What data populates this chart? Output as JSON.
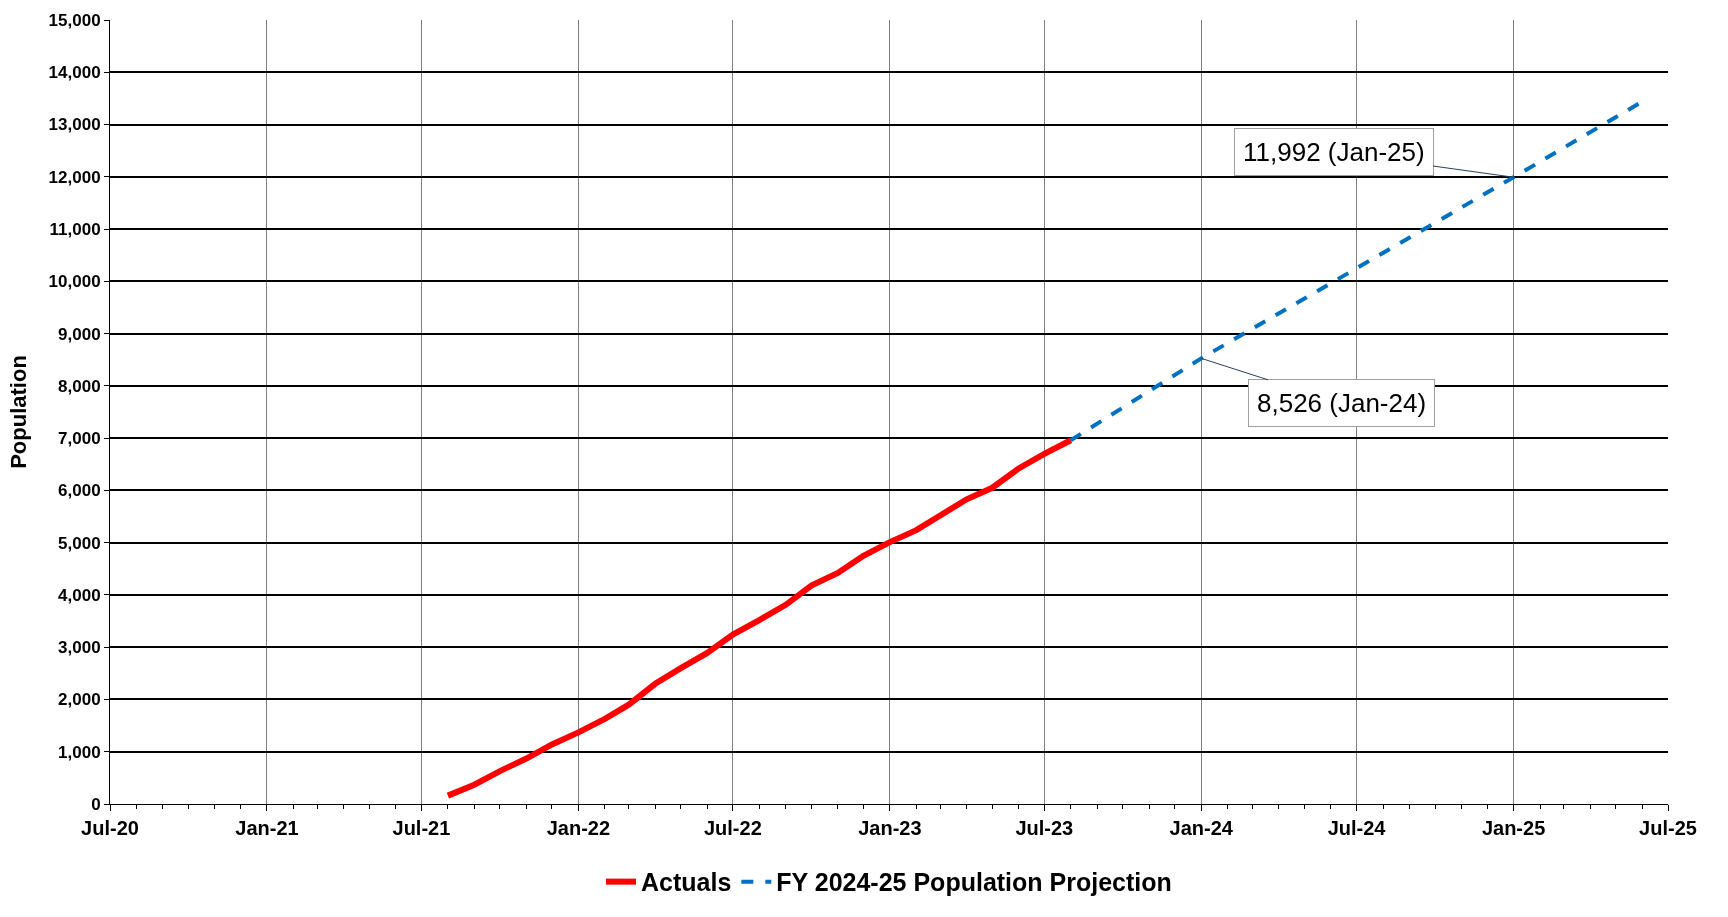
{
  "chart_data": {
    "type": "line",
    "ylabel": "Population",
    "xlim": [
      "2020-07-01",
      "2025-07-01"
    ],
    "xticks": [
      {
        "value": "2020-07-01",
        "label": "Jul-20"
      },
      {
        "value": "2021-01-01",
        "label": "Jan-21"
      },
      {
        "value": "2021-07-01",
        "label": "Jul-21"
      },
      {
        "value": "2022-01-01",
        "label": "Jan-22"
      },
      {
        "value": "2022-07-01",
        "label": "Jul-22"
      },
      {
        "value": "2023-01-01",
        "label": "Jan-23"
      },
      {
        "value": "2023-07-01",
        "label": "Jul-23"
      },
      {
        "value": "2024-01-01",
        "label": "Jan-24"
      },
      {
        "value": "2024-07-01",
        "label": "Jul-24"
      },
      {
        "value": "2025-01-01",
        "label": "Jan-25"
      },
      {
        "value": "2025-07-01",
        "label": "Jul-25"
      }
    ],
    "ylim": [
      0,
      15000
    ],
    "yticks": [
      {
        "value": 0,
        "label": "0"
      },
      {
        "value": 1000,
        "label": "1,000"
      },
      {
        "value": 2000,
        "label": "2,000"
      },
      {
        "value": 3000,
        "label": "3,000"
      },
      {
        "value": 4000,
        "label": "4,000"
      },
      {
        "value": 5000,
        "label": "5,000"
      },
      {
        "value": 6000,
        "label": "6,000"
      },
      {
        "value": 7000,
        "label": "7,000"
      },
      {
        "value": 8000,
        "label": "8,000"
      },
      {
        "value": 9000,
        "label": "9,000"
      },
      {
        "value": 10000,
        "label": "10,000"
      },
      {
        "value": 11000,
        "label": "11,000"
      },
      {
        "value": 12000,
        "label": "12,000"
      },
      {
        "value": 13000,
        "label": "13,000"
      },
      {
        "value": 14000,
        "label": "14,000"
      },
      {
        "value": 15000,
        "label": "15,000"
      }
    ],
    "grid": true,
    "legend": "bottom",
    "series": [
      {
        "name": "Actuals",
        "color": "#ff0000",
        "line_style": "solid",
        "x": [
          "2021-08-01",
          "2021-09-01",
          "2021-10-01",
          "2021-11-01",
          "2021-12-01",
          "2022-01-01",
          "2022-02-01",
          "2022-03-01",
          "2022-04-01",
          "2022-05-01",
          "2022-06-01",
          "2022-07-01",
          "2022-08-01",
          "2022-09-01",
          "2022-10-01",
          "2022-11-01",
          "2022-12-01",
          "2023-01-01",
          "2023-02-01",
          "2023-03-01",
          "2023-04-01",
          "2023-05-01",
          "2023-06-01",
          "2023-07-01",
          "2023-08-01"
        ],
        "values": [
          160,
          370,
          630,
          870,
          1140,
          1370,
          1630,
          1900,
          2300,
          2600,
          2890,
          3240,
          3520,
          3810,
          4180,
          4420,
          4750,
          5010,
          5240,
          5520,
          5830,
          6050,
          6420,
          6700,
          6960
        ]
      },
      {
        "name": "FY 2024-25 Population Projection",
        "color": "#0070c0",
        "line_style": "dashed",
        "x": [
          "2023-08-01",
          "2024-01-01",
          "2025-01-01",
          "2025-06-01"
        ],
        "values": [
          6960,
          8526,
          11992,
          13440
        ]
      }
    ],
    "annotations": [
      {
        "text": "8,526 (Jan-24)",
        "x": "2024-01-01",
        "y": 8526
      },
      {
        "text": "11,992 (Jan-25)",
        "x": "2025-01-01",
        "y": 11992
      }
    ]
  }
}
